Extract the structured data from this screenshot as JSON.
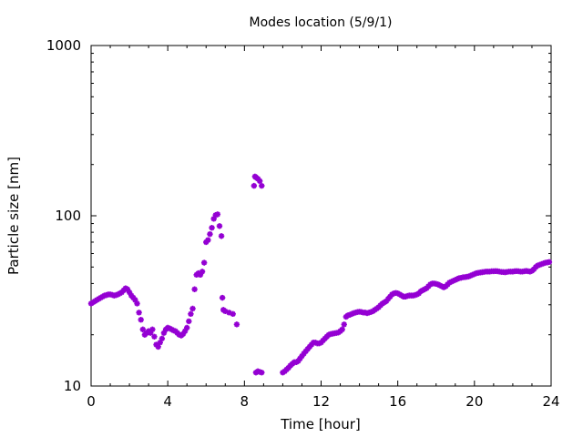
{
  "chart_data": {
    "type": "scatter",
    "title": "Modes location (5/9/1)",
    "xlabel": "Time [hour]",
    "ylabel": "Particle size [nm]",
    "xlim": [
      0,
      24
    ],
    "ylim": [
      10,
      1000
    ],
    "yscale": "log",
    "grid": false,
    "legend": "none",
    "x_ticks": [
      0,
      4,
      8,
      12,
      16,
      20,
      24
    ],
    "x_tick_labels": [
      "0",
      "4",
      "8",
      "12",
      "16",
      "20",
      "24"
    ],
    "y_ticks": [
      10,
      100,
      1000
    ],
    "y_tick_labels": [
      "10",
      "100",
      "1000"
    ],
    "marker_color": "#9400d3",
    "series": [
      {
        "points": [
          [
            0.0,
            30.5
          ],
          [
            0.1,
            31.0
          ],
          [
            0.2,
            31.5
          ],
          [
            0.3,
            32.0
          ],
          [
            0.4,
            32.5
          ],
          [
            0.5,
            33.0
          ],
          [
            0.6,
            33.5
          ],
          [
            0.7,
            34.0
          ],
          [
            0.8,
            34.2
          ],
          [
            0.9,
            34.5
          ],
          [
            1.0,
            34.5
          ],
          [
            1.1,
            34.3
          ],
          [
            1.2,
            34.0
          ],
          [
            1.3,
            34.2
          ],
          [
            1.4,
            34.5
          ],
          [
            1.5,
            35.0
          ],
          [
            1.6,
            35.5
          ],
          [
            1.7,
            36.5
          ],
          [
            1.8,
            37.5
          ],
          [
            1.9,
            37.0
          ],
          [
            2.0,
            35.5
          ],
          [
            2.1,
            34.0
          ],
          [
            2.2,
            33.0
          ],
          [
            2.3,
            32.0
          ],
          [
            2.4,
            30.5
          ],
          [
            2.5,
            27.0
          ],
          [
            2.6,
            24.5
          ],
          [
            2.7,
            21.5
          ],
          [
            2.8,
            20.0
          ],
          [
            2.9,
            20.5
          ],
          [
            3.0,
            21.0
          ],
          [
            3.1,
            20.5
          ],
          [
            3.2,
            21.5
          ],
          [
            3.3,
            19.5
          ],
          [
            3.4,
            17.5
          ],
          [
            3.5,
            17.0
          ],
          [
            3.6,
            18.0
          ],
          [
            3.7,
            19.0
          ],
          [
            3.8,
            20.5
          ],
          [
            3.9,
            21.5
          ],
          [
            4.0,
            22.0
          ],
          [
            4.1,
            21.8
          ],
          [
            4.2,
            21.5
          ],
          [
            4.3,
            21.2
          ],
          [
            4.4,
            21.0
          ],
          [
            4.5,
            20.5
          ],
          [
            4.6,
            20.0
          ],
          [
            4.7,
            19.8
          ],
          [
            4.8,
            20.2
          ],
          [
            4.9,
            21.0
          ],
          [
            5.0,
            22.0
          ],
          [
            5.1,
            24.0
          ],
          [
            5.2,
            26.5
          ],
          [
            5.3,
            28.5
          ],
          [
            5.4,
            37.0
          ],
          [
            5.5,
            45.0
          ],
          [
            5.6,
            46.0
          ],
          [
            5.7,
            45.0
          ],
          [
            5.8,
            47.0
          ],
          [
            5.9,
            53.0
          ],
          [
            6.0,
            70.0
          ],
          [
            6.1,
            72.0
          ],
          [
            6.2,
            78.0
          ],
          [
            6.3,
            85.0
          ],
          [
            6.4,
            96.0
          ],
          [
            6.5,
            101.0
          ],
          [
            6.6,
            102.0
          ],
          [
            6.7,
            87.0
          ],
          [
            6.8,
            76.0
          ],
          [
            6.85,
            33.0
          ],
          [
            6.9,
            28.0
          ],
          [
            7.0,
            27.5
          ],
          [
            7.2,
            27.0
          ],
          [
            7.4,
            26.5
          ],
          [
            7.6,
            23.0
          ],
          [
            8.5,
            150.0
          ],
          [
            8.55,
            170.0
          ],
          [
            8.6,
            168.0
          ],
          [
            8.7,
            165.0
          ],
          [
            8.8,
            160.0
          ],
          [
            8.9,
            150.0
          ],
          [
            8.6,
            12.0
          ],
          [
            8.7,
            12.2
          ],
          [
            8.8,
            12.1
          ],
          [
            8.9,
            12.0
          ],
          [
            10.0,
            12.0
          ],
          [
            10.1,
            12.2
          ],
          [
            10.2,
            12.5
          ],
          [
            10.3,
            12.8
          ],
          [
            10.4,
            13.2
          ],
          [
            10.5,
            13.5
          ],
          [
            10.6,
            13.8
          ],
          [
            10.7,
            13.8
          ],
          [
            10.8,
            14.0
          ],
          [
            10.9,
            14.5
          ],
          [
            11.0,
            15.0
          ],
          [
            11.1,
            15.5
          ],
          [
            11.2,
            16.0
          ],
          [
            11.3,
            16.5
          ],
          [
            11.4,
            17.0
          ],
          [
            11.5,
            17.5
          ],
          [
            11.6,
            18.0
          ],
          [
            11.7,
            18.0
          ],
          [
            11.8,
            17.8
          ],
          [
            11.9,
            17.8
          ],
          [
            12.0,
            18.0
          ],
          [
            12.1,
            18.5
          ],
          [
            12.2,
            19.0
          ],
          [
            12.3,
            19.5
          ],
          [
            12.4,
            20.0
          ],
          [
            12.5,
            20.2
          ],
          [
            12.6,
            20.3
          ],
          [
            12.7,
            20.4
          ],
          [
            12.8,
            20.5
          ],
          [
            12.9,
            20.6
          ],
          [
            13.0,
            21.0
          ],
          [
            13.1,
            21.5
          ],
          [
            13.2,
            23.0
          ],
          [
            13.3,
            25.5
          ],
          [
            13.4,
            26.0
          ],
          [
            13.5,
            26.2
          ],
          [
            13.6,
            26.5
          ],
          [
            13.7,
            26.8
          ],
          [
            13.8,
            27.0
          ],
          [
            13.9,
            27.2
          ],
          [
            14.0,
            27.3
          ],
          [
            14.1,
            27.2
          ],
          [
            14.2,
            27.0
          ],
          [
            14.3,
            27.0
          ],
          [
            14.4,
            26.8
          ],
          [
            14.5,
            27.0
          ],
          [
            14.6,
            27.2
          ],
          [
            14.7,
            27.5
          ],
          [
            14.8,
            28.0
          ],
          [
            14.9,
            28.5
          ],
          [
            15.0,
            29.0
          ],
          [
            15.1,
            29.8
          ],
          [
            15.2,
            30.5
          ],
          [
            15.3,
            31.0
          ],
          [
            15.4,
            31.5
          ],
          [
            15.5,
            32.5
          ],
          [
            15.6,
            33.5
          ],
          [
            15.7,
            34.5
          ],
          [
            15.8,
            35.0
          ],
          [
            15.9,
            35.2
          ],
          [
            16.0,
            35.0
          ],
          [
            16.1,
            34.5
          ],
          [
            16.2,
            34.0
          ],
          [
            16.3,
            33.5
          ],
          [
            16.4,
            33.5
          ],
          [
            16.5,
            33.8
          ],
          [
            16.6,
            34.0
          ],
          [
            16.7,
            34.0
          ],
          [
            16.8,
            34.0
          ],
          [
            16.9,
            34.2
          ],
          [
            17.0,
            34.5
          ],
          [
            17.1,
            35.0
          ],
          [
            17.2,
            36.0
          ],
          [
            17.3,
            36.5
          ],
          [
            17.4,
            37.0
          ],
          [
            17.5,
            37.5
          ],
          [
            17.6,
            38.5
          ],
          [
            17.7,
            39.5
          ],
          [
            17.8,
            40.0
          ],
          [
            17.9,
            40.0
          ],
          [
            18.0,
            39.8
          ],
          [
            18.1,
            39.5
          ],
          [
            18.2,
            39.0
          ],
          [
            18.3,
            38.5
          ],
          [
            18.4,
            38.0
          ],
          [
            18.5,
            38.5
          ],
          [
            18.6,
            39.5
          ],
          [
            18.7,
            40.5
          ],
          [
            18.8,
            41.0
          ],
          [
            18.9,
            41.5
          ],
          [
            19.0,
            42.0
          ],
          [
            19.1,
            42.5
          ],
          [
            19.2,
            43.0
          ],
          [
            19.3,
            43.2
          ],
          [
            19.4,
            43.5
          ],
          [
            19.5,
            43.6
          ],
          [
            19.6,
            43.8
          ],
          [
            19.7,
            44.0
          ],
          [
            19.8,
            44.5
          ],
          [
            19.9,
            45.0
          ],
          [
            20.0,
            45.5
          ],
          [
            20.1,
            46.0
          ],
          [
            20.2,
            46.2
          ],
          [
            20.3,
            46.4
          ],
          [
            20.4,
            46.6
          ],
          [
            20.5,
            46.8
          ],
          [
            20.6,
            47.0
          ],
          [
            20.7,
            47.0
          ],
          [
            20.8,
            47.0
          ],
          [
            20.9,
            47.2
          ],
          [
            21.0,
            47.2
          ],
          [
            21.1,
            47.3
          ],
          [
            21.2,
            47.2
          ],
          [
            21.3,
            47.0
          ],
          [
            21.4,
            46.8
          ],
          [
            21.5,
            46.7
          ],
          [
            21.6,
            46.6
          ],
          [
            21.7,
            46.8
          ],
          [
            21.8,
            47.0
          ],
          [
            21.9,
            47.0
          ],
          [
            22.0,
            47.0
          ],
          [
            22.1,
            47.2
          ],
          [
            22.2,
            47.3
          ],
          [
            22.3,
            47.2
          ],
          [
            22.4,
            47.0
          ],
          [
            22.5,
            47.0
          ],
          [
            22.6,
            47.2
          ],
          [
            22.7,
            47.4
          ],
          [
            22.8,
            47.2
          ],
          [
            22.9,
            47.0
          ],
          [
            23.0,
            47.5
          ],
          [
            23.1,
            48.5
          ],
          [
            23.2,
            50.0
          ],
          [
            23.3,
            51.0
          ],
          [
            23.4,
            51.5
          ],
          [
            23.5,
            52.0
          ],
          [
            23.6,
            52.5
          ],
          [
            23.7,
            53.0
          ],
          [
            23.8,
            53.2
          ],
          [
            23.9,
            53.5
          ]
        ]
      }
    ]
  }
}
